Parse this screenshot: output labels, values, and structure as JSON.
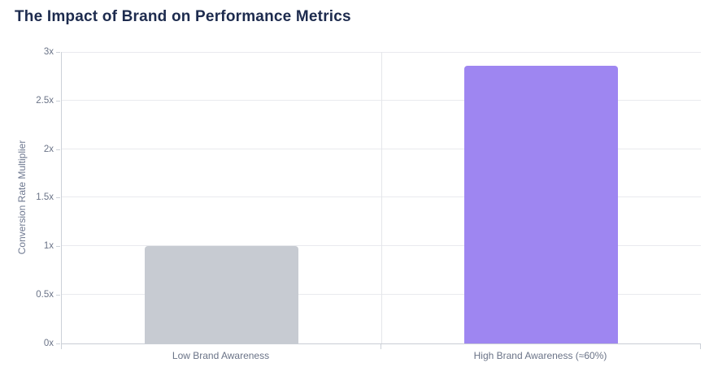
{
  "page": {
    "title": "The Impact of Brand on Performance Metrics"
  },
  "chart_data": {
    "type": "bar",
    "title": "The Impact of Brand on Performance Metrics",
    "xlabel": "",
    "ylabel": "Conversion Rate Multiplier",
    "categories": [
      "Low Brand Awareness",
      "High Brand Awareness (≈60%)"
    ],
    "values": [
      1.0,
      2.86
    ],
    "bar_colors": [
      "#c5c9d0",
      "#9a81f0"
    ],
    "ylim": [
      0,
      3
    ],
    "ytick_step": 0.5,
    "ytick_labels": [
      "0x",
      "0.5x",
      "1x",
      "1.5x",
      "2x",
      "2.5x",
      "3x"
    ],
    "grid": true,
    "legend_position": "none",
    "bar_width_fraction": 0.482
  },
  "colors": {
    "title_text": "#1d2b4e",
    "tick_text": "#6a7387",
    "axis_line": "#ccd1d8",
    "gridline": "#e9eaee",
    "boundary_line": "#e4e6ea",
    "background": "#ffffff",
    "bar_low": "#c5c9d0",
    "bar_high": "#9a81f0"
  }
}
